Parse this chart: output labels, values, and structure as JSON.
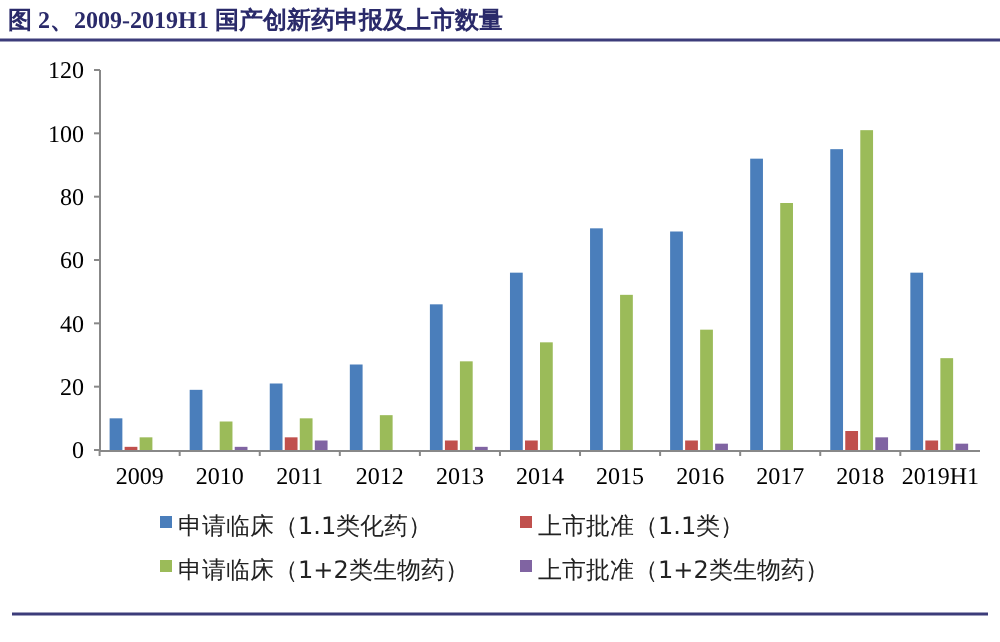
{
  "chart_data": {
    "type": "bar",
    "title": "图 2、2009-2019H1 国产创新药申报及上市数量",
    "categories": [
      "2009",
      "2010",
      "2011",
      "2012",
      "2013",
      "2014",
      "2015",
      "2016",
      "2017",
      "2018",
      "2019H1"
    ],
    "series": [
      {
        "name": "申请临床（1.1类化药）",
        "color": "#4a7ebb",
        "values": [
          10,
          19,
          21,
          27,
          46,
          56,
          70,
          69,
          92,
          95,
          56
        ]
      },
      {
        "name": "上市批准（1.1类）",
        "color": "#c0504d",
        "values": [
          1,
          0,
          4,
          0,
          3,
          3,
          0,
          3,
          0,
          6,
          3
        ]
      },
      {
        "name": "申请临床（1+2类生物药）",
        "color": "#9bbb59",
        "values": [
          4,
          9,
          10,
          11,
          28,
          34,
          49,
          38,
          78,
          101,
          29
        ]
      },
      {
        "name": "上市批准（1+2类生物药）",
        "color": "#8064a2",
        "values": [
          0,
          1,
          3,
          0,
          1,
          0,
          0,
          2,
          0,
          4,
          2
        ]
      }
    ],
    "ylim": [
      0,
      120
    ],
    "yticks": [
      0,
      20,
      40,
      60,
      80,
      100,
      120
    ],
    "grid": false,
    "legend": "bottom"
  }
}
